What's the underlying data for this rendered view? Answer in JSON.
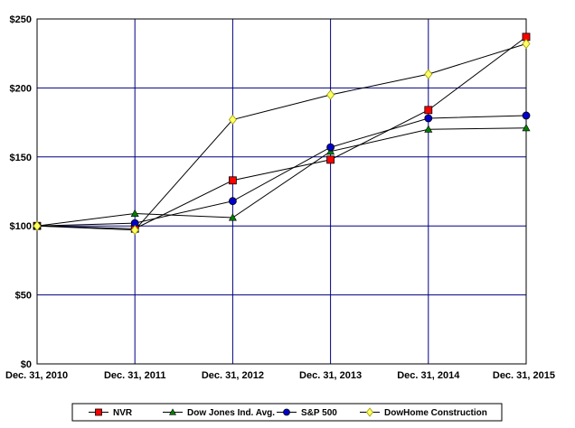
{
  "chart_data": {
    "type": "line",
    "title": "",
    "xlabel": "",
    "ylabel": "",
    "categories": [
      "Dec. 31, 2010",
      "Dec. 31, 2011",
      "Dec. 31, 2012",
      "Dec. 31, 2013",
      "Dec. 31, 2014",
      "Dec. 31, 2015"
    ],
    "ylim": [
      0,
      250
    ],
    "yticks": [
      0,
      50,
      100,
      150,
      200,
      250
    ],
    "ytick_labels": [
      "$0",
      "$50",
      "$100",
      "$150",
      "$200",
      "$250"
    ],
    "grid": true,
    "legend_position": "bottom",
    "series": [
      {
        "name": "NVR",
        "values": [
          100,
          98,
          133,
          148,
          184,
          237
        ],
        "color": "#ff0000",
        "marker": "square"
      },
      {
        "name": "Dow Jones Ind. Avg.",
        "values": [
          100,
          109,
          106,
          154,
          170,
          171
        ],
        "color": "#008000",
        "marker": "triangle"
      },
      {
        "name": "S&P 500",
        "values": [
          100,
          102,
          118,
          157,
          178,
          180
        ],
        "color": "#0000cc",
        "marker": "circle"
      },
      {
        "name": "DowHome Construction",
        "values": [
          100,
          97,
          177,
          195,
          210,
          232
        ],
        "color": "#ffff66",
        "marker": "diamond"
      }
    ]
  }
}
